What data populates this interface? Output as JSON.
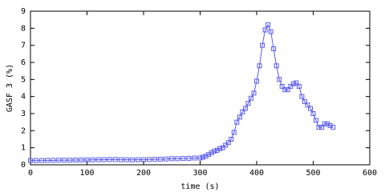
{
  "chart_data": {
    "type": "line",
    "marker": "square",
    "color": "#5b5bef",
    "xlabel": "time (s)",
    "ylabel": "GASF 3 (%)",
    "xlim": [
      0,
      600
    ],
    "ylim": [
      0,
      9
    ],
    "xticks": [
      0,
      100,
      200,
      300,
      400,
      500,
      600
    ],
    "yticks": [
      0,
      1,
      2,
      3,
      4,
      5,
      6,
      7,
      8,
      9
    ],
    "x": [
      0,
      10,
      20,
      30,
      40,
      50,
      60,
      70,
      80,
      90,
      100,
      110,
      120,
      130,
      140,
      150,
      160,
      170,
      180,
      190,
      200,
      210,
      220,
      230,
      240,
      250,
      260,
      270,
      280,
      290,
      300,
      305,
      310,
      315,
      320,
      325,
      330,
      335,
      340,
      345,
      350,
      355,
      360,
      365,
      370,
      375,
      380,
      385,
      390,
      395,
      400,
      405,
      410,
      415,
      420,
      425,
      430,
      435,
      440,
      445,
      450,
      455,
      460,
      465,
      470,
      475,
      480,
      485,
      490,
      495,
      500,
      505,
      510,
      515,
      520,
      525,
      530,
      535
    ],
    "values": [
      0.25,
      0.25,
      0.25,
      0.26,
      0.26,
      0.27,
      0.27,
      0.27,
      0.28,
      0.28,
      0.28,
      0.29,
      0.3,
      0.3,
      0.31,
      0.31,
      0.3,
      0.3,
      0.29,
      0.3,
      0.3,
      0.31,
      0.32,
      0.33,
      0.34,
      0.36,
      0.36,
      0.37,
      0.38,
      0.4,
      0.4,
      0.45,
      0.5,
      0.6,
      0.7,
      0.8,
      0.85,
      0.95,
      1.0,
      1.15,
      1.3,
      1.5,
      1.9,
      2.5,
      2.8,
      3.1,
      3.3,
      3.6,
      3.9,
      4.2,
      4.9,
      5.8,
      7.0,
      7.9,
      8.2,
      7.8,
      6.8,
      5.8,
      5.0,
      4.6,
      4.4,
      4.4,
      4.6,
      4.75,
      4.8,
      4.6,
      4.0,
      3.7,
      3.5,
      3.3,
      3.0,
      2.6,
      2.2,
      2.2,
      2.4,
      2.4,
      2.3,
      2.2
    ]
  }
}
